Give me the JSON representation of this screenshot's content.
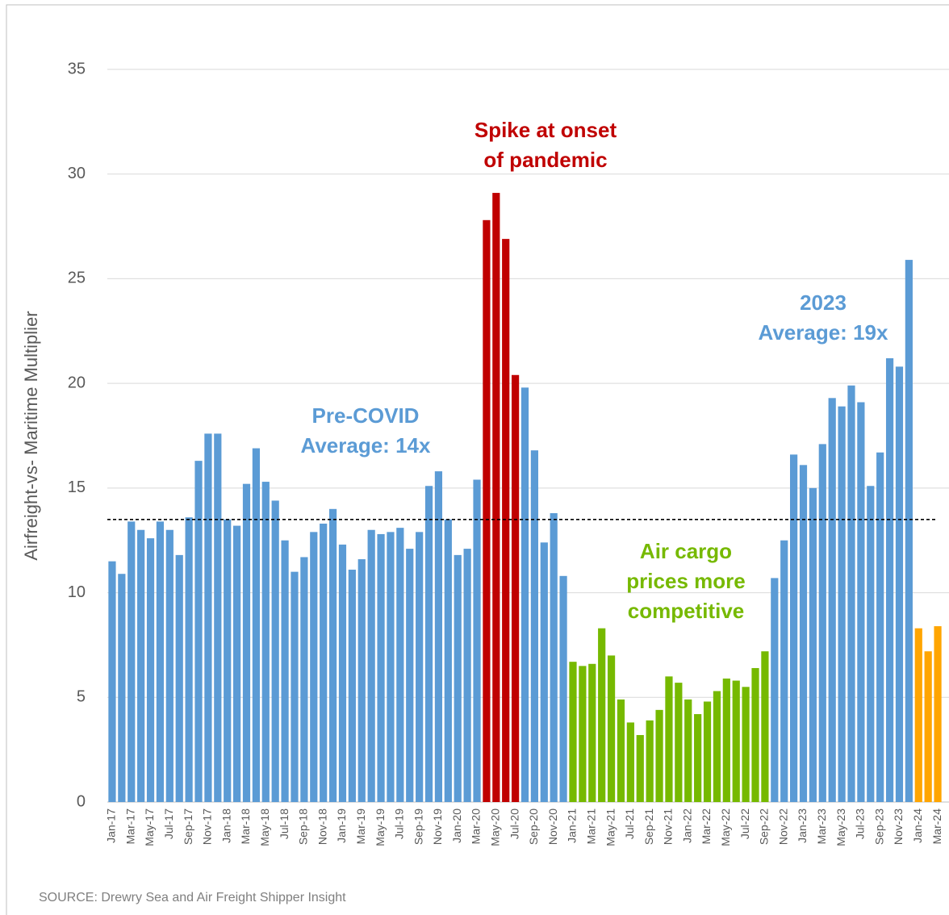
{
  "chart_data": {
    "type": "bar",
    "y_axis_label": "Airfreight-vs- Maritime Multiplier",
    "source": "SOURCE:  Drewry Sea and Air Freight Shipper Insight",
    "categories": [
      "Jan-17",
      null,
      "Mar-17",
      null,
      "May-17",
      null,
      "Jul-17",
      null,
      "Sep-17",
      null,
      "Nov-17",
      null,
      "Jan-18",
      null,
      "Mar-18",
      null,
      "May-18",
      null,
      "Jul-18",
      null,
      "Sep-18",
      null,
      "Nov-18",
      null,
      "Jan-19",
      null,
      "Mar-19",
      null,
      "May-19",
      null,
      "Jul-19",
      null,
      "Sep-19",
      null,
      "Nov-19",
      null,
      "Jan-20",
      null,
      "Mar-20",
      null,
      "May-20",
      null,
      "Jul-20",
      null,
      "Sep-20",
      null,
      "Nov-20",
      null,
      "Jan-21",
      null,
      "Mar-21",
      null,
      "May-21",
      null,
      "Jul-21",
      null,
      "Sep-21",
      null,
      "Nov-21",
      null,
      "Jan-22",
      null,
      "Mar-22",
      null,
      "May-22",
      null,
      "Jul-22",
      null,
      "Sep-22",
      null,
      "Nov-22",
      null,
      "Jan-23",
      null,
      "Mar-23",
      null,
      "May-23",
      null,
      "Jul-23",
      null,
      "Sep-23",
      null,
      "Nov-23",
      null,
      "Jan-24",
      null,
      "Mar-24"
    ],
    "values": [
      11.5,
      10.9,
      13.4,
      13.0,
      12.6,
      13.4,
      13.0,
      11.8,
      13.6,
      16.3,
      17.6,
      17.6,
      13.5,
      13.2,
      15.2,
      16.9,
      15.3,
      14.4,
      12.5,
      11.0,
      11.7,
      12.9,
      13.3,
      14.0,
      12.3,
      11.1,
      11.6,
      13.0,
      12.8,
      12.9,
      13.1,
      12.1,
      12.9,
      15.1,
      15.8,
      13.5,
      11.8,
      12.1,
      15.4,
      27.8,
      29.1,
      26.9,
      20.4,
      19.8,
      16.8,
      12.4,
      13.8,
      10.8,
      6.7,
      6.5,
      6.6,
      8.3,
      7.0,
      4.9,
      3.8,
      3.2,
      3.9,
      4.4,
      6.0,
      5.7,
      4.9,
      4.2,
      4.8,
      5.3,
      5.9,
      5.8,
      5.5,
      6.4,
      7.2,
      10.7,
      12.5,
      16.6,
      16.1,
      15.0,
      17.1,
      19.3,
      18.9,
      19.9,
      19.1,
      15.1,
      16.7,
      21.2,
      20.8,
      25.9,
      8.3,
      7.2,
      8.4
    ],
    "colors": [
      "#5b9bd5",
      "#5b9bd5",
      "#5b9bd5",
      "#5b9bd5",
      "#5b9bd5",
      "#5b9bd5",
      "#5b9bd5",
      "#5b9bd5",
      "#5b9bd5",
      "#5b9bd5",
      "#5b9bd5",
      "#5b9bd5",
      "#5b9bd5",
      "#5b9bd5",
      "#5b9bd5",
      "#5b9bd5",
      "#5b9bd5",
      "#5b9bd5",
      "#5b9bd5",
      "#5b9bd5",
      "#5b9bd5",
      "#5b9bd5",
      "#5b9bd5",
      "#5b9bd5",
      "#5b9bd5",
      "#5b9bd5",
      "#5b9bd5",
      "#5b9bd5",
      "#5b9bd5",
      "#5b9bd5",
      "#5b9bd5",
      "#5b9bd5",
      "#5b9bd5",
      "#5b9bd5",
      "#5b9bd5",
      "#5b9bd5",
      "#5b9bd5",
      "#5b9bd5",
      "#5b9bd5",
      "#c00000",
      "#c00000",
      "#c00000",
      "#c00000",
      "#5b9bd5",
      "#5b9bd5",
      "#5b9bd5",
      "#5b9bd5",
      "#5b9bd5",
      "#76b900",
      "#76b900",
      "#76b900",
      "#76b900",
      "#76b900",
      "#76b900",
      "#76b900",
      "#76b900",
      "#76b900",
      "#76b900",
      "#76b900",
      "#76b900",
      "#76b900",
      "#76b900",
      "#76b900",
      "#76b900",
      "#76b900",
      "#76b900",
      "#76b900",
      "#76b900",
      "#76b900",
      "#5b9bd5",
      "#5b9bd5",
      "#5b9bd5",
      "#5b9bd5",
      "#5b9bd5",
      "#5b9bd5",
      "#5b9bd5",
      "#5b9bd5",
      "#5b9bd5",
      "#5b9bd5",
      "#5b9bd5",
      "#5b9bd5",
      "#5b9bd5",
      "#5b9bd5",
      "#5b9bd5",
      "#ffa500",
      "#ffa500",
      "#ffa500"
    ],
    "reference_line": 13.5,
    "ylim": [
      0,
      35
    ],
    "yticks": [
      0,
      5,
      10,
      15,
      20,
      25,
      30,
      35
    ],
    "grid": true,
    "annotations": [
      {
        "text": [
          "Pre-COVID",
          "Average: 14x"
        ],
        "color": "#5b9bd5"
      },
      {
        "text": [
          "Spike at onset",
          "of pandemic"
        ],
        "color": "#c00000"
      },
      {
        "text": [
          "Air cargo",
          "prices more",
          "competitive"
        ],
        "color": "#76b900"
      },
      {
        "text": [
          "2023",
          "Average: 19x"
        ],
        "color": "#5b9bd5"
      }
    ]
  }
}
